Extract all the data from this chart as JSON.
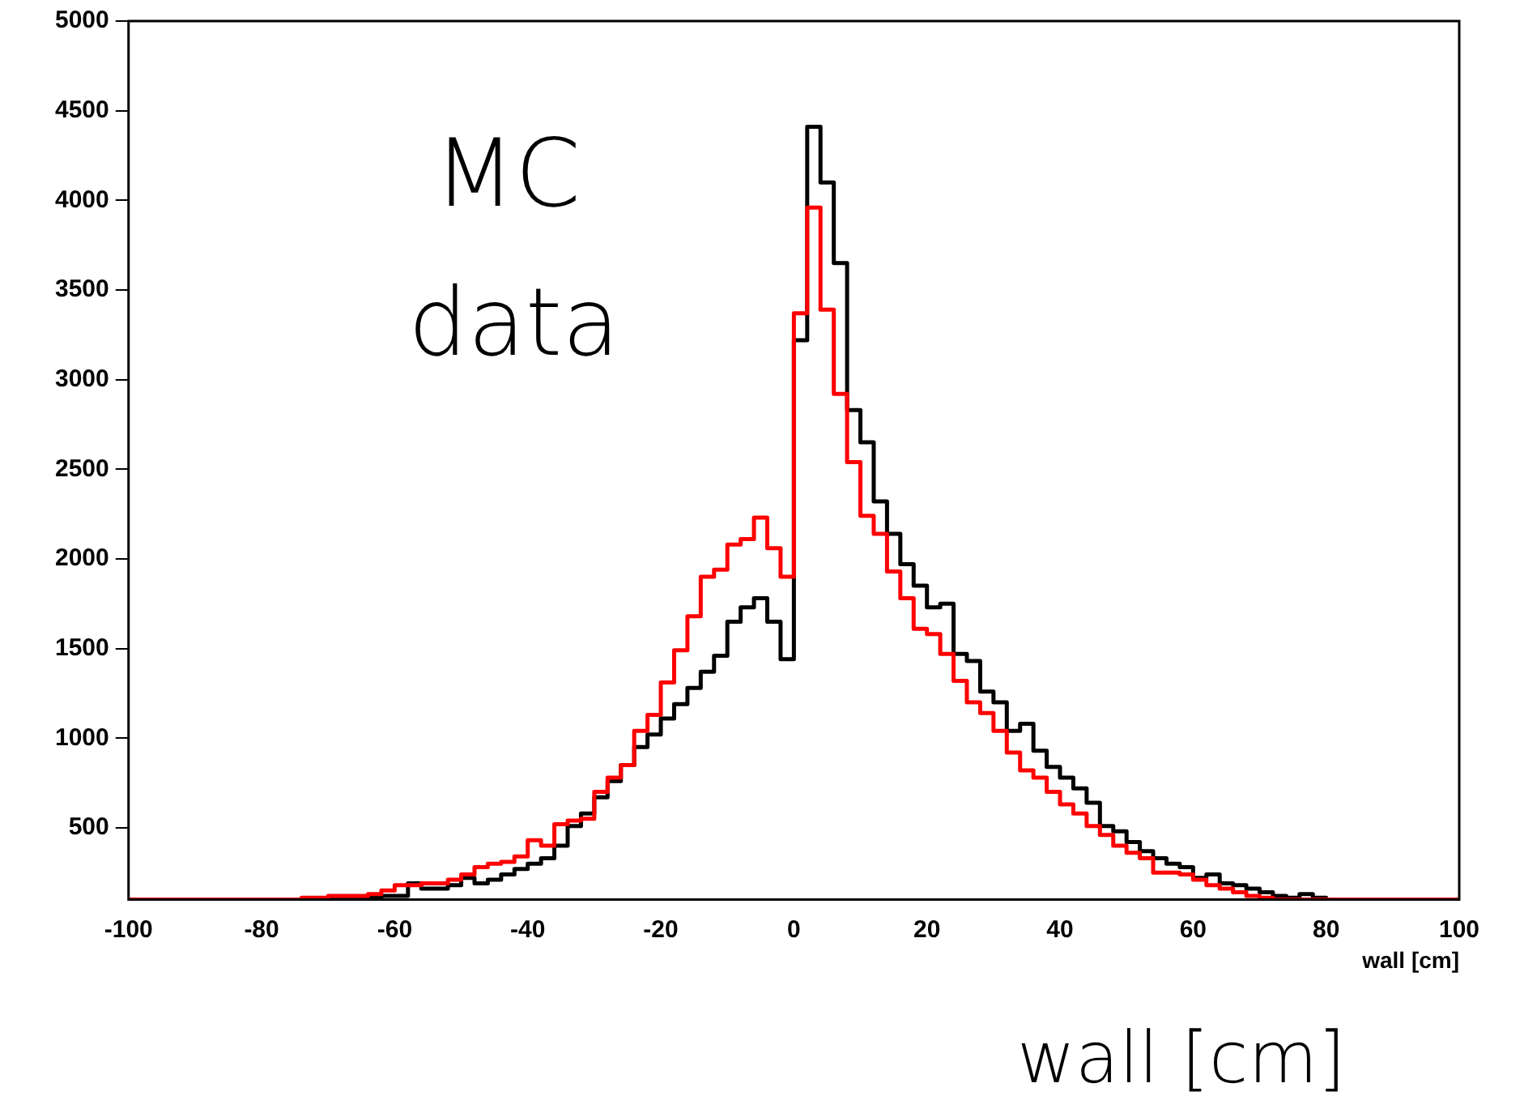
{
  "chart_data": {
    "type": "histogram",
    "xlabel": "wall [cm]",
    "bins": [
      -100,
      -98,
      -96,
      -94,
      -92,
      -90,
      -88,
      -86,
      -84,
      -82,
      -80,
      -78,
      -76,
      -74,
      -72,
      -70,
      -68,
      -66,
      -64,
      -62,
      -60,
      -58,
      -56,
      -54,
      -52,
      -50,
      -48,
      -46,
      -44,
      -42,
      -40,
      -38,
      -36,
      -34,
      -32,
      -30,
      -28,
      -26,
      -24,
      -22,
      -20,
      -18,
      -16,
      -14,
      -12,
      -10,
      -8,
      -6,
      -4,
      -2,
      0,
      2,
      4,
      6,
      8,
      10,
      12,
      14,
      16,
      18,
      20,
      22,
      24,
      26,
      28,
      30,
      32,
      34,
      36,
      38,
      40,
      42,
      44,
      46,
      48,
      50,
      52,
      54,
      56,
      58,
      60,
      62,
      64,
      66,
      68,
      70,
      72,
      74,
      76,
      78,
      80,
      82,
      84,
      86,
      88,
      90,
      92,
      94,
      96,
      98,
      100
    ],
    "series": [
      {
        "color": "#ff0000",
        "values": [
          100,
          100,
          100,
          100,
          100,
          100,
          100,
          100,
          100,
          100,
          100,
          100,
          100,
          110,
          110,
          120,
          120,
          120,
          130,
          150,
          180,
          180,
          190,
          190,
          210,
          240,
          280,
          300,
          310,
          340,
          430,
          400,
          520,
          540,
          550,
          700,
          780,
          850,
          1040,
          1130,
          1310,
          1490,
          1680,
          1900,
          1940,
          2080,
          2110,
          2230,
          2060,
          1900,
          3370,
          3960,
          3390,
          2920,
          2540,
          2240,
          2140,
          1930,
          1780,
          1610,
          1580,
          1470,
          1320,
          1200,
          1140,
          1040,
          920,
          820,
          780,
          700,
          630,
          580,
          510,
          460,
          400,
          360,
          330,
          250,
          250,
          240,
          210,
          180,
          160,
          140,
          120,
          110,
          100,
          100,
          100,
          100,
          100,
          100,
          100,
          100,
          100,
          100,
          100,
          100,
          100,
          100
        ]
      },
      {
        "color": "#000000",
        "values": [
          100,
          100,
          100,
          100,
          100,
          100,
          100,
          100,
          100,
          100,
          100,
          100,
          100,
          100,
          100,
          100,
          100,
          110,
          110,
          120,
          120,
          190,
          160,
          160,
          180,
          220,
          190,
          210,
          240,
          270,
          300,
          330,
          400,
          510,
          580,
          670,
          760,
          850,
          950,
          1020,
          1110,
          1190,
          1280,
          1370,
          1460,
          1650,
          1730,
          1780,
          1650,
          1440,
          3220,
          4410,
          4100,
          3650,
          2830,
          2650,
          2320,
          2140,
          1970,
          1850,
          1730,
          1750,
          1470,
          1430,
          1260,
          1200,
          1040,
          1080,
          930,
          840,
          780,
          720,
          640,
          510,
          480,
          420,
          370,
          330,
          300,
          280,
          220,
          240,
          190,
          180,
          160,
          140,
          120,
          110,
          130,
          110,
          100,
          100,
          100,
          100,
          100,
          100,
          100,
          100,
          100,
          100
        ]
      }
    ],
    "xlim": [
      -100,
      100
    ],
    "xticks": [
      -100,
      -80,
      -60,
      -40,
      -20,
      0,
      20,
      40,
      60,
      80,
      100
    ],
    "ylim": [
      100,
      5000
    ],
    "yticks": [
      500,
      1000,
      1500,
      2000,
      2500,
      3000,
      3500,
      4000,
      4500,
      5000
    ],
    "annotations": [
      "MC",
      "data",
      "wall [cm]"
    ]
  }
}
